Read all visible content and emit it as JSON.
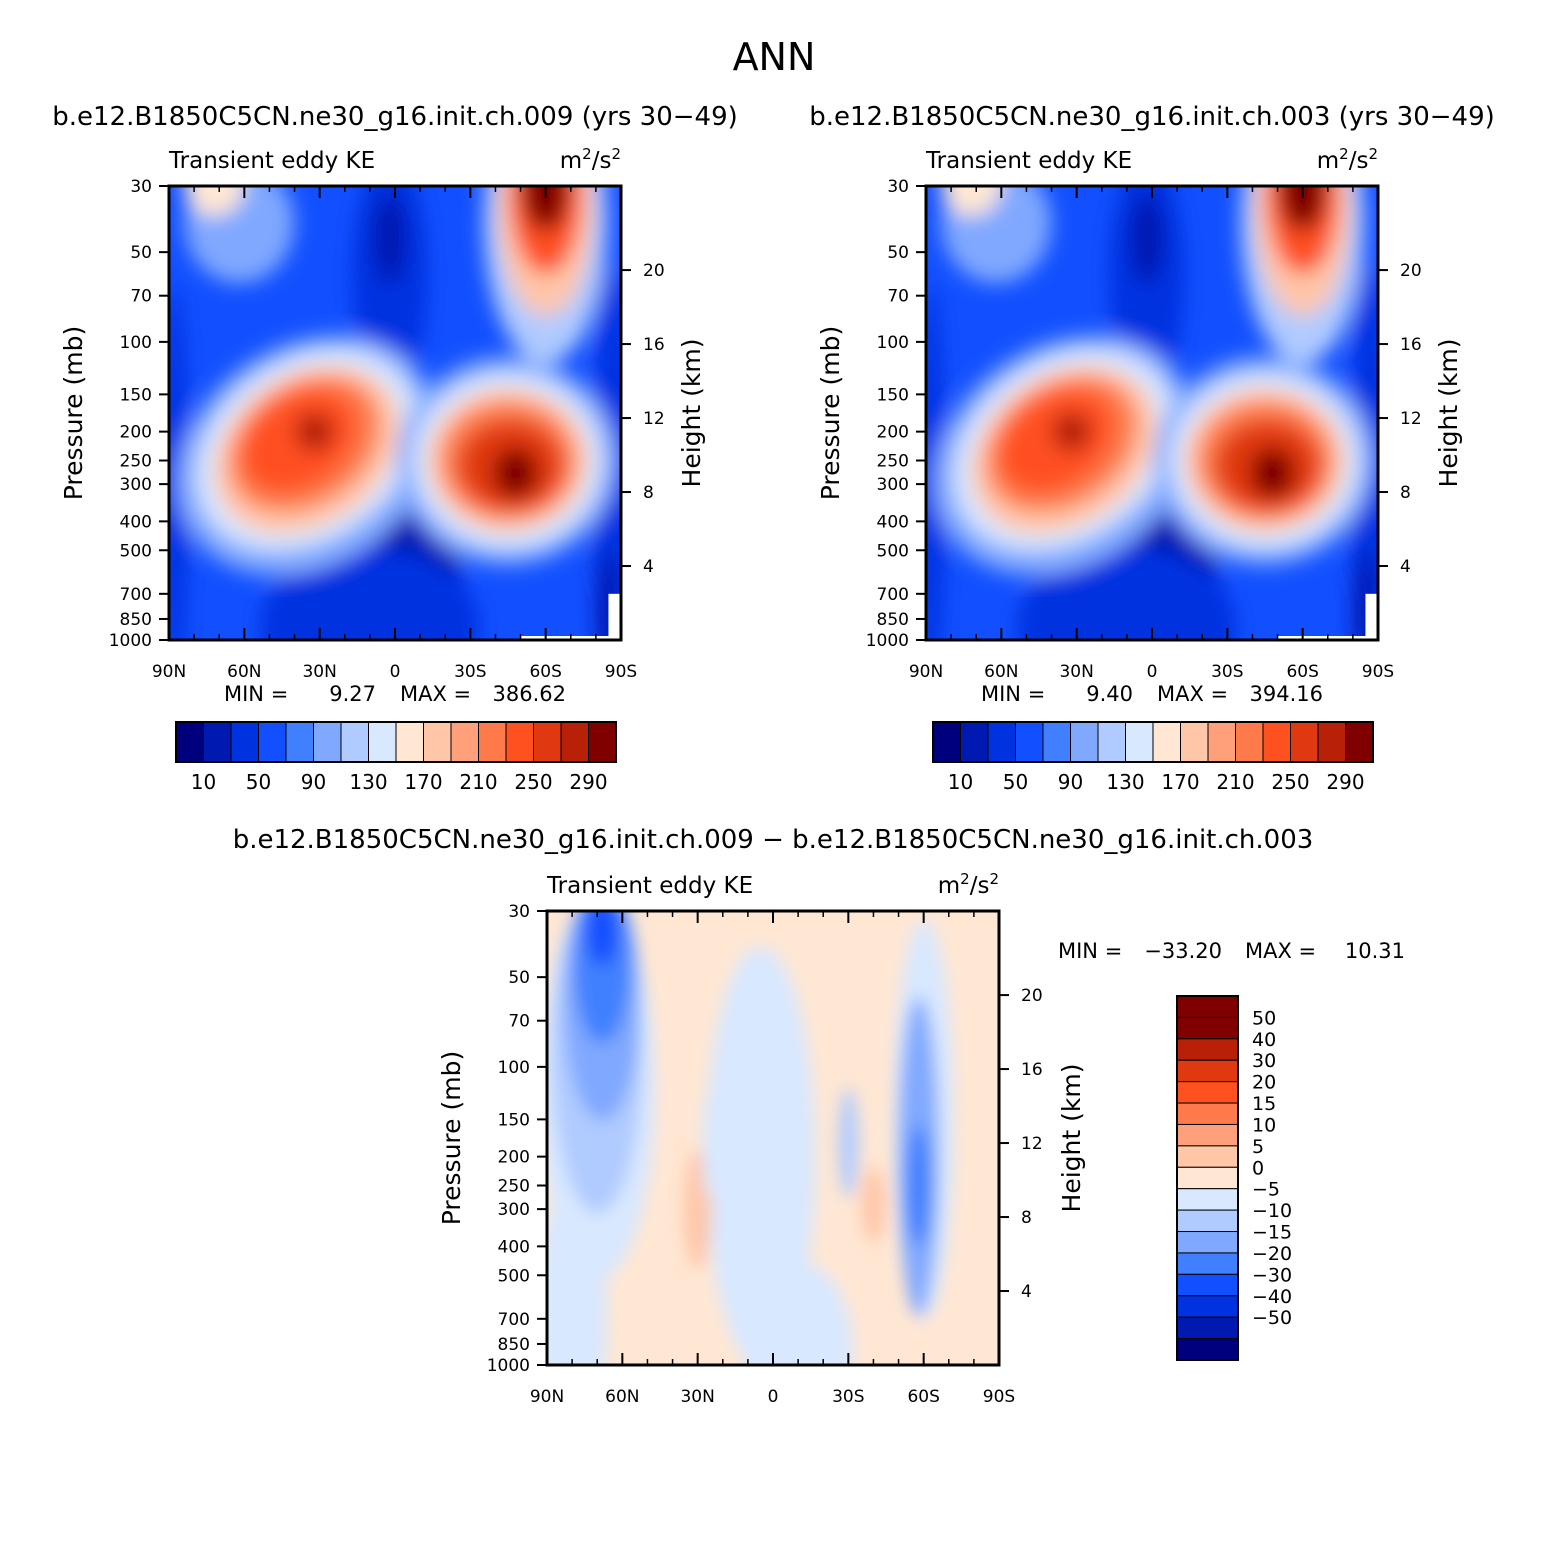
{
  "figure_title": "ANN",
  "panels": [
    {
      "id": "p1",
      "case_title": "b.e12.B1850C5CN.ne30_g16.init.ch.009 (yrs 30−49)",
      "left_title": "Transient eddy KE",
      "units": {
        "base": "m",
        "exp": "2",
        "mid": "/s",
        "exp2": "2"
      },
      "ylabel": "Pressure (mb)",
      "y2label": "Height (km)",
      "stats": {
        "min_label": "MIN =",
        "min": "9.27",
        "max_label": "MAX =",
        "max": "386.62"
      }
    },
    {
      "id": "p2",
      "case_title": "b.e12.B1850C5CN.ne30_g16.init.ch.003 (yrs 30−49)",
      "left_title": "Transient eddy KE",
      "units": {
        "base": "m",
        "exp": "2",
        "mid": "/s",
        "exp2": "2"
      },
      "ylabel": "Pressure (mb)",
      "y2label": "Height (km)",
      "stats": {
        "min_label": "MIN =",
        "min": "9.40",
        "max_label": "MAX =",
        "max": "394.16"
      }
    },
    {
      "id": "p3",
      "case_title": "b.e12.B1850C5CN.ne30_g16.init.ch.009 − b.e12.B1850C5CN.ne30_g16.init.ch.003",
      "left_title": "Transient eddy KE",
      "units": {
        "base": "m",
        "exp": "2",
        "mid": "/s",
        "exp2": "2"
      },
      "ylabel": "Pressure (mb)",
      "y2label": "Height (km)",
      "stats": {
        "min_label": "MIN =",
        "min": "−33.20",
        "max_label": "MAX =",
        "max": "10.31"
      }
    }
  ],
  "chart_data": [
    {
      "type": "heatmap",
      "title": "Transient eddy KE",
      "units": "m2/s2",
      "x_ticks": [
        "90N",
        "60N",
        "30N",
        "0",
        "30S",
        "60S",
        "90S"
      ],
      "y_ticks": [
        "30",
        "50",
        "70",
        "100",
        "150",
        "200",
        "250",
        "300",
        "400",
        "500",
        "700",
        "850",
        "1000"
      ],
      "y2_ticks": [
        "20",
        "16",
        "12",
        "8",
        "4"
      ],
      "xlim": [
        90,
        -90
      ],
      "ylim": [
        1000,
        30
      ],
      "y_scale": "log",
      "colorbar": {
        "labels": [
          "10",
          "50",
          "90",
          "130",
          "170",
          "210",
          "250",
          "290"
        ],
        "levels": [
          10,
          30,
          50,
          70,
          90,
          110,
          130,
          150,
          170,
          190,
          210,
          230,
          250,
          270,
          290
        ],
        "colors": [
          "#00007f",
          "#0019b0",
          "#0032e0",
          "#1250ff",
          "#4080ff",
          "#80a8ff",
          "#b0cbff",
          "#d8e8ff",
          "#ffe7d3",
          "#ffc6a8",
          "#ffa07a",
          "#ff7a4a",
          "#ff5020",
          "#e03810",
          "#b82008",
          "#800000"
        ]
      },
      "features": [
        {
          "lat": 32,
          "p": 200,
          "peak": 300
        },
        {
          "lat": -47,
          "p": 270,
          "peak": 320
        },
        {
          "lat": -60,
          "p": 30,
          "peak": 387
        },
        {
          "lat": 0,
          "p": 45,
          "peak": 9.27
        },
        {
          "lat": 0,
          "p": 800,
          "peak": 15
        }
      ],
      "min": 9.27,
      "max": 386.62
    },
    {
      "type": "heatmap",
      "title": "Transient eddy KE",
      "units": "m2/s2",
      "x_ticks": [
        "90N",
        "60N",
        "30N",
        "0",
        "30S",
        "60S",
        "90S"
      ],
      "y_ticks": [
        "30",
        "50",
        "70",
        "100",
        "150",
        "200",
        "250",
        "300",
        "400",
        "500",
        "700",
        "850",
        "1000"
      ],
      "y2_ticks": [
        "20",
        "16",
        "12",
        "8",
        "4"
      ],
      "xlim": [
        90,
        -90
      ],
      "ylim": [
        1000,
        30
      ],
      "y_scale": "log",
      "colorbar": {
        "labels": [
          "10",
          "50",
          "90",
          "130",
          "170",
          "210",
          "250",
          "290"
        ],
        "levels": [
          10,
          30,
          50,
          70,
          90,
          110,
          130,
          150,
          170,
          190,
          210,
          230,
          250,
          270,
          290
        ],
        "colors": [
          "#00007f",
          "#0019b0",
          "#0032e0",
          "#1250ff",
          "#4080ff",
          "#80a8ff",
          "#b0cbff",
          "#d8e8ff",
          "#ffe7d3",
          "#ffc6a8",
          "#ffa07a",
          "#ff7a4a",
          "#ff5020",
          "#e03810",
          "#b82008",
          "#800000"
        ]
      },
      "features": [
        {
          "lat": 32,
          "p": 200,
          "peak": 300
        },
        {
          "lat": -47,
          "p": 270,
          "peak": 320
        },
        {
          "lat": -60,
          "p": 30,
          "peak": 394
        },
        {
          "lat": 0,
          "p": 45,
          "peak": 9.4
        },
        {
          "lat": 0,
          "p": 800,
          "peak": 15
        }
      ],
      "min": 9.4,
      "max": 394.16
    },
    {
      "type": "heatmap",
      "title": "Transient eddy KE",
      "units": "m2/s2",
      "x_ticks": [
        "90N",
        "60N",
        "30N",
        "0",
        "30S",
        "60S",
        "90S"
      ],
      "y_ticks": [
        "30",
        "50",
        "70",
        "100",
        "150",
        "200",
        "250",
        "300",
        "400",
        "500",
        "700",
        "850",
        "1000"
      ],
      "y2_ticks": [
        "20",
        "16",
        "12",
        "8",
        "4"
      ],
      "xlim": [
        90,
        -90
      ],
      "ylim": [
        1000,
        30
      ],
      "y_scale": "log",
      "colorbar": {
        "labels": [
          "50",
          "40",
          "30",
          "20",
          "15",
          "10",
          "5",
          "0",
          "−5",
          "−10",
          "−15",
          "−20",
          "−30",
          "−40",
          "−50"
        ],
        "levels": [
          50,
          40,
          30,
          20,
          15,
          10,
          5,
          0,
          -5,
          -10,
          -15,
          -20,
          -30,
          -40,
          -50
        ],
        "colors": [
          "#800000",
          "#b82008",
          "#e03810",
          "#ff5020",
          "#ff7a4a",
          "#ffa07a",
          "#ffc6a8",
          "#ffe7d3",
          "#d8e8ff",
          "#b0cbff",
          "#80a8ff",
          "#4080ff",
          "#1250ff",
          "#0032e0",
          "#0019b0",
          "#00007f"
        ]
      },
      "features": [
        {
          "lat": 68,
          "p": 40,
          "peak": -33.2
        },
        {
          "lat": -58,
          "p": 260,
          "peak": -20
        },
        {
          "lat": 30,
          "p": 300,
          "peak": 7
        },
        {
          "lat": -40,
          "p": 290,
          "peak": 7
        }
      ],
      "min": -33.2,
      "max": 10.31
    }
  ]
}
